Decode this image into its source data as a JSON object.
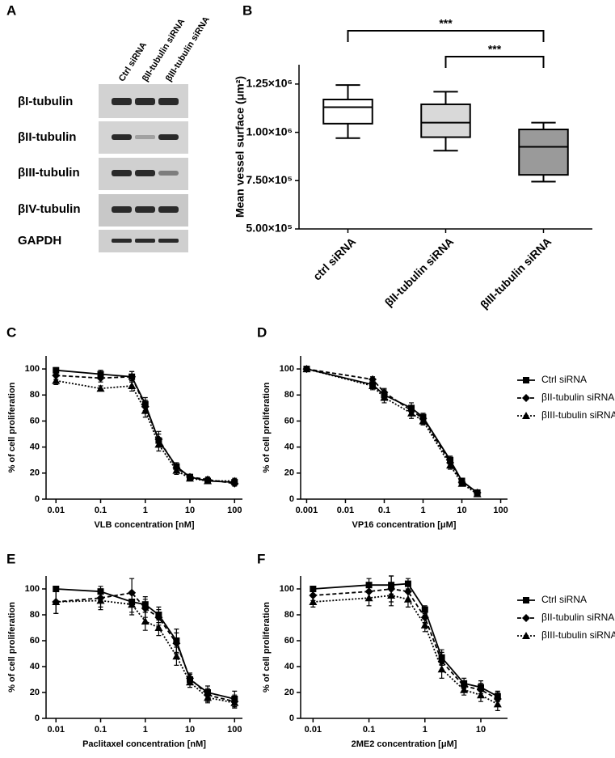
{
  "blot": {
    "panel": "A",
    "columns": [
      "Ctrl siRNA",
      "βII-tubulin siRNA",
      "βIII-tubulin siRNA"
    ],
    "rows": [
      "βI-tubulin",
      "βII-tubulin",
      "βIII-tubulin",
      "βIV-tubulin",
      "GAPDH"
    ]
  },
  "chart_data": [
    {
      "type": "box",
      "panel": "B",
      "y_label": "Mean vessel surface (μm²)",
      "categories": [
        "ctrl siRNA",
        "βII-tubulin siRNA",
        "βIII-tubulin siRNA"
      ],
      "colors": [
        "#ffffff",
        "#d9d9d9",
        "#9a9a9a"
      ],
      "boxes": [
        {
          "min": 970000,
          "q1": 1045000,
          "median": 1130000,
          "q3": 1170000,
          "max": 1245000
        },
        {
          "min": 905000,
          "q1": 975000,
          "median": 1050000,
          "q3": 1145000,
          "max": 1210000
        },
        {
          "min": 745000,
          "q1": 780000,
          "median": 925000,
          "q3": 1015000,
          "max": 1050000
        }
      ],
      "ylim": [
        500000,
        1350000
      ],
      "yticks": [
        {
          "value": 500000,
          "label": "5.00×10⁵"
        },
        {
          "value": 750000,
          "label": "7.50×10⁵"
        },
        {
          "value": 1000000,
          "label": "1.00×10⁶"
        },
        {
          "value": 1250000,
          "label": "1.25×10⁶"
        }
      ],
      "annotations": [
        "***",
        "***"
      ]
    },
    {
      "type": "line",
      "panel": "C",
      "x_label": "VLB concentration [nM]",
      "y_label": "% of cell proliferation",
      "xscale": "log",
      "x": [
        0.01,
        0.1,
        0.5,
        1,
        2,
        5,
        10,
        25,
        100
      ],
      "series": [
        {
          "color": "#000000",
          "dash": "solid",
          "marker": "square",
          "values": [
            99,
            96,
            94,
            73,
            45,
            25,
            17,
            14,
            13
          ],
          "errors": [
            2,
            3,
            4,
            5,
            5,
            3,
            2,
            2,
            2
          ]
        },
        {
          "color": "#000000",
          "dash": "dashed",
          "marker": "diamond",
          "values": [
            95,
            93,
            94,
            71,
            46,
            24,
            17,
            15,
            12
          ],
          "errors": [
            3,
            3,
            4,
            5,
            6,
            3,
            2,
            2,
            2
          ]
        },
        {
          "color": "#000000",
          "dash": "dotted",
          "marker": "triangle",
          "values": [
            91,
            85,
            87,
            68,
            42,
            22,
            16,
            14,
            14
          ],
          "errors": [
            3,
            2,
            4,
            5,
            5,
            3,
            2,
            2,
            2
          ]
        }
      ],
      "xlim": [
        0.006,
        150
      ],
      "ylim": [
        0,
        110
      ],
      "xticks": [
        0.01,
        0.1,
        1,
        10,
        100
      ],
      "yticks": [
        0,
        20,
        40,
        60,
        80,
        100
      ]
    },
    {
      "type": "line",
      "panel": "D",
      "x_label": "VP16 concentration [μM]",
      "y_label": "% of cell proliferation",
      "xscale": "log",
      "legend": "right",
      "x": [
        0.001,
        0.05,
        0.1,
        0.5,
        1,
        5,
        10,
        25
      ],
      "series": [
        {
          "name": "Ctrl siRNA",
          "color": "#000000",
          "dash": "solid",
          "marker": "square",
          "values": [
            100,
            88,
            80,
            70,
            63,
            30,
            14,
            5
          ],
          "errors": [
            1,
            3,
            4,
            4,
            3,
            3,
            2,
            1
          ]
        },
        {
          "name": "βII-tubulin siRNA",
          "color": "#000000",
          "dash": "dashed",
          "marker": "diamond",
          "values": [
            100,
            92,
            82,
            68,
            62,
            28,
            13,
            5
          ],
          "errors": [
            1,
            2,
            3,
            4,
            3,
            3,
            2,
            1
          ]
        },
        {
          "name": "βIII-tubulin siRNA",
          "color": "#000000",
          "dash": "dotted",
          "marker": "triangle",
          "values": [
            100,
            87,
            78,
            66,
            60,
            26,
            12,
            4
          ],
          "errors": [
            1,
            3,
            4,
            4,
            3,
            3,
            2,
            1
          ]
        }
      ],
      "xlim": [
        0.0007,
        150
      ],
      "ylim": [
        0,
        110
      ],
      "xticks": [
        0.001,
        0.01,
        0.1,
        1,
        10,
        100
      ],
      "yticks": [
        0,
        20,
        40,
        60,
        80,
        100
      ]
    },
    {
      "type": "line",
      "panel": "E",
      "x_label": "Paclitaxel concentration [nM]",
      "y_label": "% of cell proliferation",
      "xscale": "log",
      "x": [
        0.01,
        0.1,
        0.5,
        1,
        2,
        5,
        10,
        25,
        100
      ],
      "series": [
        {
          "color": "#000000",
          "dash": "solid",
          "marker": "square",
          "values": [
            100,
            98,
            90,
            88,
            80,
            60,
            30,
            20,
            15
          ],
          "errors": [
            2,
            4,
            8,
            6,
            6,
            9,
            4,
            5,
            6
          ]
        },
        {
          "color": "#000000",
          "dash": "dashed",
          "marker": "diamond",
          "values": [
            90,
            93,
            97,
            85,
            78,
            58,
            31,
            18,
            13
          ],
          "errors": [
            9,
            7,
            11,
            7,
            6,
            8,
            4,
            5,
            5
          ]
        },
        {
          "color": "#000000",
          "dash": "dotted",
          "marker": "triangle",
          "values": [
            90,
            91,
            88,
            75,
            70,
            48,
            28,
            16,
            12
          ],
          "errors": [
            9,
            7,
            8,
            7,
            6,
            7,
            4,
            4,
            4
          ]
        }
      ],
      "xlim": [
        0.006,
        150
      ],
      "ylim": [
        0,
        110
      ],
      "xticks": [
        0.01,
        0.1,
        1,
        10,
        100
      ],
      "yticks": [
        0,
        20,
        40,
        60,
        80,
        100
      ]
    },
    {
      "type": "line",
      "panel": "F",
      "x_label": "2ME2 concentration [μM]",
      "y_label": "% of cell proliferation",
      "xscale": "log",
      "legend": "right",
      "x": [
        0.01,
        0.1,
        0.25,
        0.5,
        1,
        2,
        5,
        10,
        20
      ],
      "series": [
        {
          "name": "Ctrl siRNA",
          "color": "#000000",
          "dash": "solid",
          "marker": "square",
          "values": [
            100,
            103,
            103,
            104,
            84,
            47,
            27,
            24,
            17
          ],
          "errors": [
            2,
            5,
            7,
            4,
            3,
            6,
            4,
            5,
            4
          ]
        },
        {
          "name": "βII-tubulin siRNA",
          "color": "#000000",
          "dash": "dashed",
          "marker": "diamond",
          "values": [
            95,
            98,
            100,
            98,
            78,
            44,
            25,
            22,
            15
          ],
          "errors": [
            4,
            7,
            10,
            6,
            4,
            7,
            4,
            5,
            5
          ]
        },
        {
          "name": "βIII-tubulin siRNA",
          "color": "#000000",
          "dash": "dotted",
          "marker": "triangle",
          "values": [
            90,
            93,
            95,
            92,
            72,
            38,
            22,
            18,
            11
          ],
          "errors": [
            4,
            6,
            8,
            6,
            5,
            7,
            4,
            5,
            5
          ]
        }
      ],
      "xlim": [
        0.006,
        30
      ],
      "ylim": [
        0,
        110
      ],
      "xticks": [
        0.01,
        0.1,
        1,
        10
      ],
      "yticks": [
        0,
        20,
        40,
        60,
        80,
        100
      ]
    }
  ]
}
